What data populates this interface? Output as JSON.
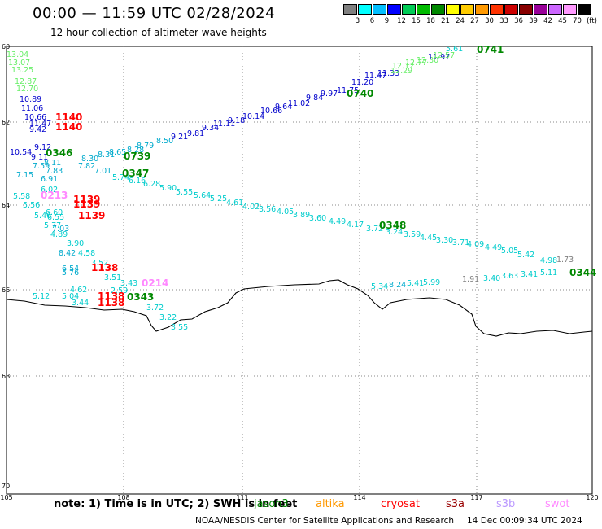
{
  "header": {
    "title": "00:00 — 11:59 UTC 02/28/2024",
    "subtitle": "12 hour collection of altimeter wave heights"
  },
  "legend": {
    "colors": [
      "#808080",
      "#00ffff",
      "#00bfff",
      "#0000ff",
      "#00cc55",
      "#00bb00",
      "#008800",
      "#ffff00",
      "#ffcc00",
      "#ff9900",
      "#ff3300",
      "#cc0000",
      "#880000",
      "#990099",
      "#cc66ff",
      "#ff99ff",
      "#000000"
    ],
    "labels": [
      "3",
      "6",
      "9",
      "12",
      "15",
      "18",
      "21",
      "24",
      "27",
      "30",
      "33",
      "36",
      "39",
      "42",
      "45",
      "70"
    ],
    "unit": "(ft)"
  },
  "axes": {
    "lat_labels": [
      "60",
      "62",
      "64",
      "66",
      "68",
      "70"
    ],
    "lon_labels": [
      "105",
      "108",
      "111",
      "114",
      "117",
      "120"
    ]
  },
  "colors": {
    "jason3": "#008800",
    "altika": "#ff9900",
    "cryosat": "#ff0000",
    "s3a": "#990000",
    "s3b": "#bb99ff",
    "swot": "#ff88ff"
  },
  "wave_labels": [
    {
      "t": "13.04",
      "c": "#66ee66"
    },
    {
      "t": "13.07",
      "c": "#66ee66"
    },
    {
      "t": "13.25",
      "c": "#66ee66"
    },
    {
      "t": "12.87",
      "c": "#66ee66"
    },
    {
      "t": "12.70",
      "c": "#66ee66"
    },
    {
      "t": "10.89",
      "c": "#0000cc"
    },
    {
      "t": "11.06",
      "c": "#0000cc"
    },
    {
      "t": "10.66",
      "c": "#0000cc"
    },
    {
      "t": "11.47",
      "c": "#0000cc"
    },
    {
      "t": "9.42",
      "c": "#0000cc"
    },
    {
      "t": "10.54",
      "c": "#0000cc"
    },
    {
      "t": "9.12",
      "c": "#0000cc"
    },
    {
      "t": "9.11",
      "c": "#0000cc"
    },
    {
      "t": "8.11",
      "c": "#00aacc"
    },
    {
      "t": "7.59",
      "c": "#00aacc"
    },
    {
      "t": "7.83",
      "c": "#00aacc"
    },
    {
      "t": "7.15",
      "c": "#00aacc"
    },
    {
      "t": "6.91",
      "c": "#00aacc"
    },
    {
      "t": "6.02",
      "c": "#00cccc"
    },
    {
      "t": "5.58",
      "c": "#00cccc"
    },
    {
      "t": "5.56",
      "c": "#00cccc"
    },
    {
      "t": "5.46",
      "c": "#00cccc"
    },
    {
      "t": "6.55",
      "c": "#00cccc"
    },
    {
      "t": "6.60",
      "c": "#00cccc"
    },
    {
      "t": "5.77",
      "c": "#00cccc"
    },
    {
      "t": "7.03",
      "c": "#00aacc"
    },
    {
      "t": "4.89",
      "c": "#00cccc"
    },
    {
      "t": "3.90",
      "c": "#00cccc"
    },
    {
      "t": "8.42",
      "c": "#00aacc"
    },
    {
      "t": "4.58",
      "c": "#00cccc"
    },
    {
      "t": "6.54",
      "c": "#00aacc"
    },
    {
      "t": "5.76",
      "c": "#00aacc"
    },
    {
      "t": "3.52",
      "c": "#00cccc"
    },
    {
      "t": "3.51",
      "c": "#00cccc"
    },
    {
      "t": "3.43",
      "c": "#00cccc"
    },
    {
      "t": "4.62",
      "c": "#00cccc"
    },
    {
      "t": "5.12",
      "c": "#00cccc"
    },
    {
      "t": "5.04",
      "c": "#00cccc"
    },
    {
      "t": "3.44",
      "c": "#00cccc"
    },
    {
      "t": "3.72",
      "c": "#00cccc"
    },
    {
      "t": "3.22",
      "c": "#00cccc"
    },
    {
      "t": "3.55",
      "c": "#00cccc"
    },
    {
      "t": "2.59",
      "c": "#00cccc"
    },
    {
      "t": "8.30",
      "c": "#00aacc"
    },
    {
      "t": "7.82",
      "c": "#00aacc"
    },
    {
      "t": "8.31",
      "c": "#00aacc"
    },
    {
      "t": "7.01",
      "c": "#00aacc"
    },
    {
      "t": "8.65",
      "c": "#00aacc"
    },
    {
      "t": "8.79",
      "c": "#00aacc"
    },
    {
      "t": "8.28",
      "c": "#00aacc"
    },
    {
      "t": "5.74",
      "c": "#00cccc"
    },
    {
      "t": "6.16",
      "c": "#00cccc"
    },
    {
      "t": "6.28",
      "c": "#00cccc"
    },
    {
      "t": "8.50",
      "c": "#00aacc"
    },
    {
      "t": "9.21",
      "c": "#0000cc"
    },
    {
      "t": "9.81",
      "c": "#0000cc"
    },
    {
      "t": "9.34",
      "c": "#0000cc"
    },
    {
      "t": "11.11",
      "c": "#0000cc"
    },
    {
      "t": "9.18",
      "c": "#0000cc"
    },
    {
      "t": "10.14",
      "c": "#0000cc"
    },
    {
      "t": "10.66",
      "c": "#0000cc"
    },
    {
      "t": "9.64",
      "c": "#0000cc"
    },
    {
      "t": "11.02",
      "c": "#0000cc"
    },
    {
      "t": "9.84",
      "c": "#0000cc"
    },
    {
      "t": "9.97",
      "c": "#0000cc"
    },
    {
      "t": "11.75",
      "c": "#0000cc"
    },
    {
      "t": "11.20",
      "c": "#0000cc"
    },
    {
      "t": "11.47",
      "c": "#0000cc"
    },
    {
      "t": "11.33",
      "c": "#0000cc"
    },
    {
      "t": "12.29",
      "c": "#66ee66"
    },
    {
      "t": "12.12",
      "c": "#66ee66"
    },
    {
      "t": "12.77",
      "c": "#66ee66"
    },
    {
      "t": "12.30",
      "c": "#66ee66"
    },
    {
      "t": "11.97",
      "c": "#0000cc"
    },
    {
      "t": "12.57",
      "c": "#66ee66"
    },
    {
      "t": "5.61",
      "c": "#00cccc"
    },
    {
      "t": "5.90",
      "c": "#00cccc"
    },
    {
      "t": "5.55",
      "c": "#00cccc"
    },
    {
      "t": "5.64",
      "c": "#00cccc"
    },
    {
      "t": "5.25",
      "c": "#00cccc"
    },
    {
      "t": "4.61",
      "c": "#00cccc"
    },
    {
      "t": "4.02",
      "c": "#00cccc"
    },
    {
      "t": "3.56",
      "c": "#00cccc"
    },
    {
      "t": "4.05",
      "c": "#00cccc"
    },
    {
      "t": "3.89",
      "c": "#00cccc"
    },
    {
      "t": "3.60",
      "c": "#00cccc"
    },
    {
      "t": "4.49",
      "c": "#00cccc"
    },
    {
      "t": "4.17",
      "c": "#00cccc"
    },
    {
      "t": "3.72",
      "c": "#00cccc"
    },
    {
      "t": "3.24",
      "c": "#00cccc"
    },
    {
      "t": "3.59",
      "c": "#00cccc"
    },
    {
      "t": "4.45",
      "c": "#00cccc"
    },
    {
      "t": "3.30",
      "c": "#00cccc"
    },
    {
      "t": "3.71",
      "c": "#00cccc"
    },
    {
      "t": "4.09",
      "c": "#00cccc"
    },
    {
      "t": "4.49",
      "c": "#00cccc"
    },
    {
      "t": "5.05",
      "c": "#00cccc"
    },
    {
      "t": "5.42",
      "c": "#00cccc"
    },
    {
      "t": "4.98",
      "c": "#00cccc"
    },
    {
      "t": "1.73",
      "c": "#808080"
    },
    {
      "t": "5.34",
      "c": "#00cccc"
    },
    {
      "t": "8.24",
      "c": "#00aacc"
    },
    {
      "t": "5.41",
      "c": "#00cccc"
    },
    {
      "t": "5.99",
      "c": "#00cccc"
    },
    {
      "t": "1.91",
      "c": "#808080"
    },
    {
      "t": "3.40",
      "c": "#00cccc"
    },
    {
      "t": "3.63",
      "c": "#00cccc"
    },
    {
      "t": "3.41",
      "c": "#00cccc"
    },
    {
      "t": "5.11",
      "c": "#00cccc"
    }
  ],
  "pass_times": [
    {
      "t": "1140",
      "c": "#ff0000"
    },
    {
      "t": "1140",
      "c": "#ff0000"
    },
    {
      "t": "0346",
      "c": "#008800"
    },
    {
      "t": "0739",
      "c": "#008800"
    },
    {
      "t": "0347",
      "c": "#008800"
    },
    {
      "t": "0213",
      "c": "#ff88ff"
    },
    {
      "t": "1139",
      "c": "#ff0000"
    },
    {
      "t": "1139",
      "c": "#ff0000"
    },
    {
      "t": "1139",
      "c": "#ff0000"
    },
    {
      "t": "1138",
      "c": "#ff0000"
    },
    {
      "t": "0214",
      "c": "#ff88ff"
    },
    {
      "t": "1138",
      "c": "#ff0000"
    },
    {
      "t": "1138",
      "c": "#ff0000"
    },
    {
      "t": "0343",
      "c": "#008800"
    },
    {
      "t": "0740",
      "c": "#008800"
    },
    {
      "t": "0741",
      "c": "#008800"
    },
    {
      "t": "0348",
      "c": "#008800"
    },
    {
      "t": "0344",
      "c": "#008800"
    }
  ],
  "footer": {
    "note": "note: 1) Time is in UTC; 2) SWH is in feet",
    "sats": [
      "jason3",
      "altika",
      "cryosat",
      "s3a",
      "s3b",
      "swot"
    ],
    "credit": "NOAA/NESDIS Center for Satellite Applications and Research",
    "timestamp": "14 Dec 00:09:34 UTC 2024"
  }
}
